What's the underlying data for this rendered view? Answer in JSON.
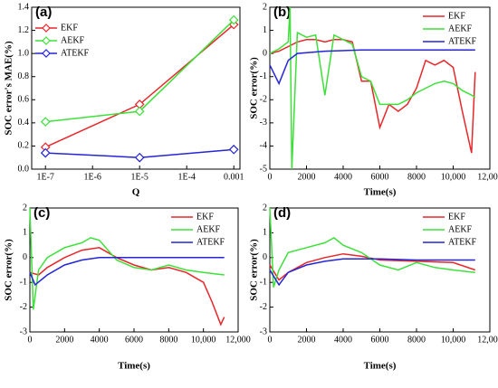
{
  "chart_data": [
    {
      "type": "line",
      "panel_label": "(a)",
      "xlabel": "Q",
      "ylabel": "SOC error's MAE(%)",
      "xscale": "log",
      "xlim": [
        5.1e-08,
        0.00135
      ],
      "xticks": [
        {
          "value": 1e-07,
          "label": "1E-7"
        },
        {
          "value": 1e-06,
          "label": "1E-6"
        },
        {
          "value": 1e-05,
          "label": "1E-5"
        },
        {
          "value": 0.0001,
          "label": "1E-4"
        },
        0.001
      ],
      "ylim": [
        0,
        1.4
      ],
      "yticks": [
        {
          "value": 0,
          "label": "0.0"
        },
        0.2,
        0.4,
        0.6,
        0.8,
        {
          "value": 1,
          "label": "1.0"
        },
        1.2,
        1.4
      ],
      "legend": "upper left",
      "markers": true,
      "series": [
        {
          "name": "EKF",
          "color": "#e8262a",
          "x": [
            1e-07,
            1e-05,
            0.001
          ],
          "values": [
            0.19,
            0.56,
            1.25
          ]
        },
        {
          "name": "AEKF",
          "color": "#3ee03a",
          "x": [
            1e-07,
            1e-05,
            0.001
          ],
          "values": [
            0.41,
            0.5,
            1.29
          ]
        },
        {
          "name": "ATEKF",
          "color": "#2424d8",
          "x": [
            1e-07,
            1e-05,
            0.001
          ],
          "values": [
            0.14,
            0.1,
            0.17
          ]
        }
      ]
    },
    {
      "type": "line",
      "panel_label": "(b)",
      "xlabel": "Time(s)",
      "ylabel": "SOC error(%)",
      "xlim": [
        0,
        12000
      ],
      "xticks": [
        0,
        2000,
        4000,
        6000,
        8000,
        {
          "value": 10000,
          "label": "10,000"
        },
        {
          "value": 12000,
          "label": "12,000"
        }
      ],
      "ylim": [
        -5,
        2
      ],
      "yticks": [
        -5,
        -4,
        -3,
        -2,
        -1,
        0,
        1,
        2
      ],
      "legend": "upper right",
      "markers": false,
      "series": [
        {
          "name": "EKF",
          "color": "#e8262a",
          "x": [
            0,
            500,
            1000,
            1500,
            2000,
            2500,
            3000,
            3500,
            4000,
            4500,
            5000,
            5500,
            6000,
            6500,
            7000,
            7500,
            8000,
            8500,
            9000,
            9500,
            10000,
            10500,
            11000,
            11200
          ],
          "values": [
            0,
            0.1,
            0.3,
            0.5,
            0.6,
            0.6,
            0.5,
            0.6,
            0.6,
            0.5,
            -1.2,
            -1.2,
            -3.2,
            -2.2,
            -2.5,
            -2.2,
            -1.5,
            -0.3,
            -0.5,
            -0.3,
            -0.6,
            -2.5,
            -4.3,
            -0.8
          ]
        },
        {
          "name": "AEKF",
          "color": "#3ee03a",
          "x": [
            0,
            500,
            1000,
            1100,
            1200,
            1500,
            2000,
            2500,
            3000,
            3500,
            4000,
            4500,
            5000,
            5500,
            6000,
            6500,
            7000,
            7500,
            8000,
            8500,
            9000,
            9500,
            10000,
            10500,
            11000,
            11200
          ],
          "values": [
            0,
            0.2,
            0.5,
            2,
            -5,
            0.9,
            0.7,
            0.8,
            -1.8,
            0.8,
            0.6,
            0.4,
            -1.0,
            -1.2,
            -2.2,
            -2.2,
            -2.2,
            -2.0,
            -1.7,
            -1.5,
            -1.3,
            -1.2,
            -1.3,
            -1.6,
            -1.8,
            -1.9
          ]
        },
        {
          "name": "ATEKF",
          "color": "#2424d8",
          "x": [
            0,
            500,
            1000,
            1500,
            3000,
            5000,
            8000,
            11200
          ],
          "values": [
            -0.5,
            -1.3,
            -0.3,
            0,
            0.1,
            0.15,
            0.15,
            0.15
          ]
        }
      ]
    },
    {
      "type": "line",
      "panel_label": "(c)",
      "xlabel": "Time(s)",
      "ylabel": "SOC error(%)",
      "xlim": [
        0,
        12000
      ],
      "xticks": [
        0,
        2000,
        4000,
        6000,
        8000,
        {
          "value": 10000,
          "label": "10,000"
        },
        {
          "value": 12000,
          "label": "12,000"
        }
      ],
      "ylim": [
        -3,
        2
      ],
      "yticks": [
        -3,
        -2,
        -1,
        0,
        1,
        2
      ],
      "legend": "upper right",
      "markers": false,
      "series": [
        {
          "name": "EKF",
          "color": "#e8262a",
          "x": [
            0,
            500,
            1000,
            2000,
            3000,
            4000,
            4500,
            5000,
            6000,
            7000,
            8000,
            9000,
            10000,
            10500,
            11000,
            11200
          ],
          "values": [
            -0.6,
            -0.7,
            -0.4,
            0,
            0.3,
            0.4,
            0.2,
            0,
            -0.3,
            -0.5,
            -0.4,
            -0.6,
            -1.0,
            -1.8,
            -2.7,
            -2.4
          ]
        },
        {
          "name": "AEKF",
          "color": "#3ee03a",
          "x": [
            0,
            200,
            500,
            1000,
            2000,
            3000,
            3500,
            4000,
            4500,
            5000,
            6000,
            7000,
            8000,
            9000,
            10000,
            11200
          ],
          "values": [
            2,
            -2.1,
            -0.5,
            0,
            0.4,
            0.6,
            0.8,
            0.7,
            0.3,
            -0.1,
            -0.4,
            -0.5,
            -0.3,
            -0.5,
            -0.6,
            -0.7
          ]
        },
        {
          "name": "ATEKF",
          "color": "#2424d8",
          "x": [
            0,
            300,
            1000,
            2000,
            3000,
            4000,
            5000,
            8000,
            11200
          ],
          "values": [
            -0.6,
            -1.1,
            -0.7,
            -0.3,
            -0.1,
            0,
            0,
            0,
            0
          ]
        }
      ]
    },
    {
      "type": "line",
      "panel_label": "(d)",
      "xlabel": "Time(s)",
      "ylabel": "SOC error(%)",
      "xlim": [
        0,
        12000
      ],
      "xticks": [
        0,
        2000,
        4000,
        6000,
        8000,
        {
          "value": 10000,
          "label": "10,000"
        },
        {
          "value": 12000,
          "label": "12,000"
        }
      ],
      "ylim": [
        -3,
        2
      ],
      "yticks": [
        -3,
        -2,
        -1,
        0,
        1,
        2
      ],
      "legend": "upper right",
      "markers": false,
      "series": [
        {
          "name": "EKF",
          "color": "#e8262a",
          "x": [
            0,
            500,
            1000,
            2000,
            3000,
            4000,
            5000,
            6000,
            8000,
            10000,
            11200
          ],
          "values": [
            -0.3,
            -0.9,
            -0.6,
            -0.2,
            0,
            0.15,
            0.05,
            -0.1,
            -0.15,
            -0.2,
            -0.5
          ]
        },
        {
          "name": "AEKF",
          "color": "#3ee03a",
          "x": [
            0,
            200,
            500,
            1000,
            2000,
            3000,
            3500,
            4000,
            5000,
            6000,
            7000,
            8000,
            9000,
            10000,
            11200
          ],
          "values": [
            2,
            -1.2,
            -0.5,
            0.2,
            0.4,
            0.6,
            0.8,
            0.5,
            0.2,
            -0.3,
            -0.5,
            -0.2,
            -0.4,
            -0.5,
            -0.6
          ]
        },
        {
          "name": "ATEKF",
          "color": "#2424d8",
          "x": [
            0,
            500,
            1000,
            2000,
            3000,
            4000,
            6000,
            8000,
            11200
          ],
          "values": [
            -0.5,
            -1.1,
            -0.6,
            -0.3,
            -0.15,
            -0.05,
            -0.05,
            -0.1,
            -0.1
          ]
        }
      ]
    }
  ]
}
